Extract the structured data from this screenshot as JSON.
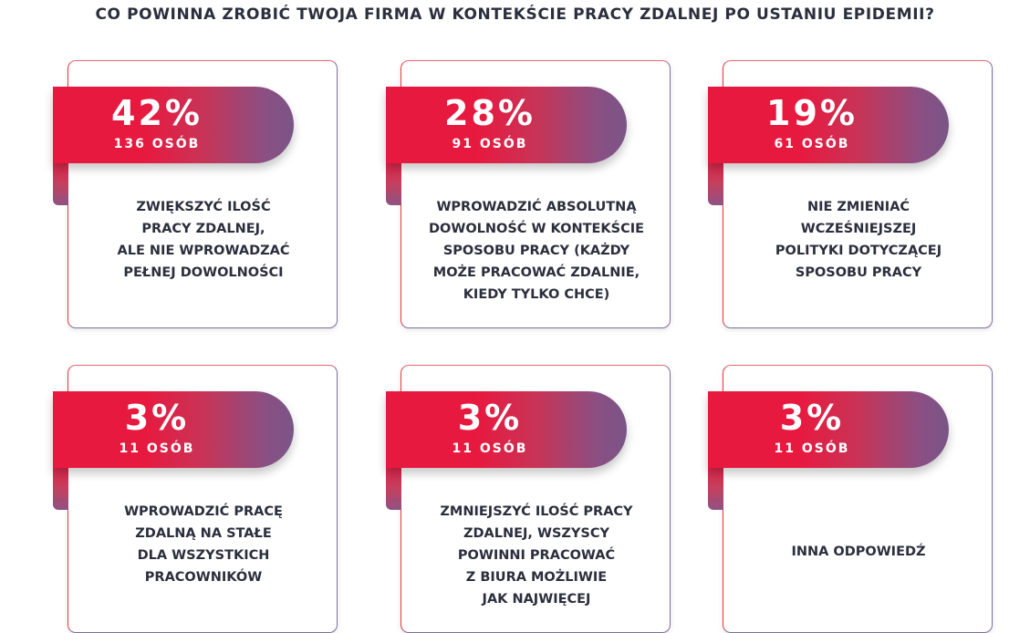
{
  "title": "CO POWINNA ZROBIĆ TWOJA FIRMA W KONTEKŚCIE PRACY ZDALNEJ PO USTANIU EPIDEMII?",
  "colors": {
    "ribbon_red": "#e8193f",
    "ribbon_purple": "#7a5587",
    "text_dark": "#2b2f3d"
  },
  "chart_data": {
    "type": "table",
    "title": "CO POWINNA ZROBIĆ TWOJA FIRMA W KONTEKŚCIE PRACY ZDALNEJ PO USTANIU EPIDEMII?",
    "items": [
      {
        "percent": "42%",
        "value": 42,
        "count": "136 OSÓB",
        "respondents": 136,
        "label": "ZWIĘKSZYĆ ILOŚĆ\nPRACY ZDALNEJ,\nALE NIE WPROWADZAĆ\nPEŁNEJ DOWOLNOŚCI"
      },
      {
        "percent": "28%",
        "value": 28,
        "count": "91 OSÓB",
        "respondents": 91,
        "label": "WPROWADZIĆ ABSOLUTNĄ\nDOWOLNOŚĆ W KONTEKŚCIE\nSPOSOBU PRACY (KAŻDY\nMOŻE PRACOWAĆ ZDALNIE,\nKIEDY TYLKO CHCE)"
      },
      {
        "percent": "19%",
        "value": 19,
        "count": "61 OSÓB",
        "respondents": 61,
        "label": "NIE ZMIENIAĆ\nWCZEŚNIEJSZEJ\nPOLITYKI DOTYCZĄCEJ\nSPOSOBU PRACY"
      },
      {
        "percent": "3%",
        "value": 3,
        "count": "11 OSÓB",
        "respondents": 11,
        "label": "WPROWADZIĆ PRACĘ\nZDALNĄ NA STAŁE\nDLA WSZYSTKICH\nPRACOWNIKÓW"
      },
      {
        "percent": "3%",
        "value": 3,
        "count": "11 OSÓB",
        "respondents": 11,
        "label": "ZMNIEJSZYĆ ILOŚĆ PRACY\nZDALNEJ, WSZYSCY\nPOWINNI PRACOWAĆ\nZ BIURA MOŻLIWIE\nJAK NAJWIĘCEJ"
      },
      {
        "percent": "3%",
        "value": 3,
        "count": "11 OSÓB",
        "respondents": 11,
        "label": "INNA ODPOWIEDŹ"
      }
    ]
  }
}
